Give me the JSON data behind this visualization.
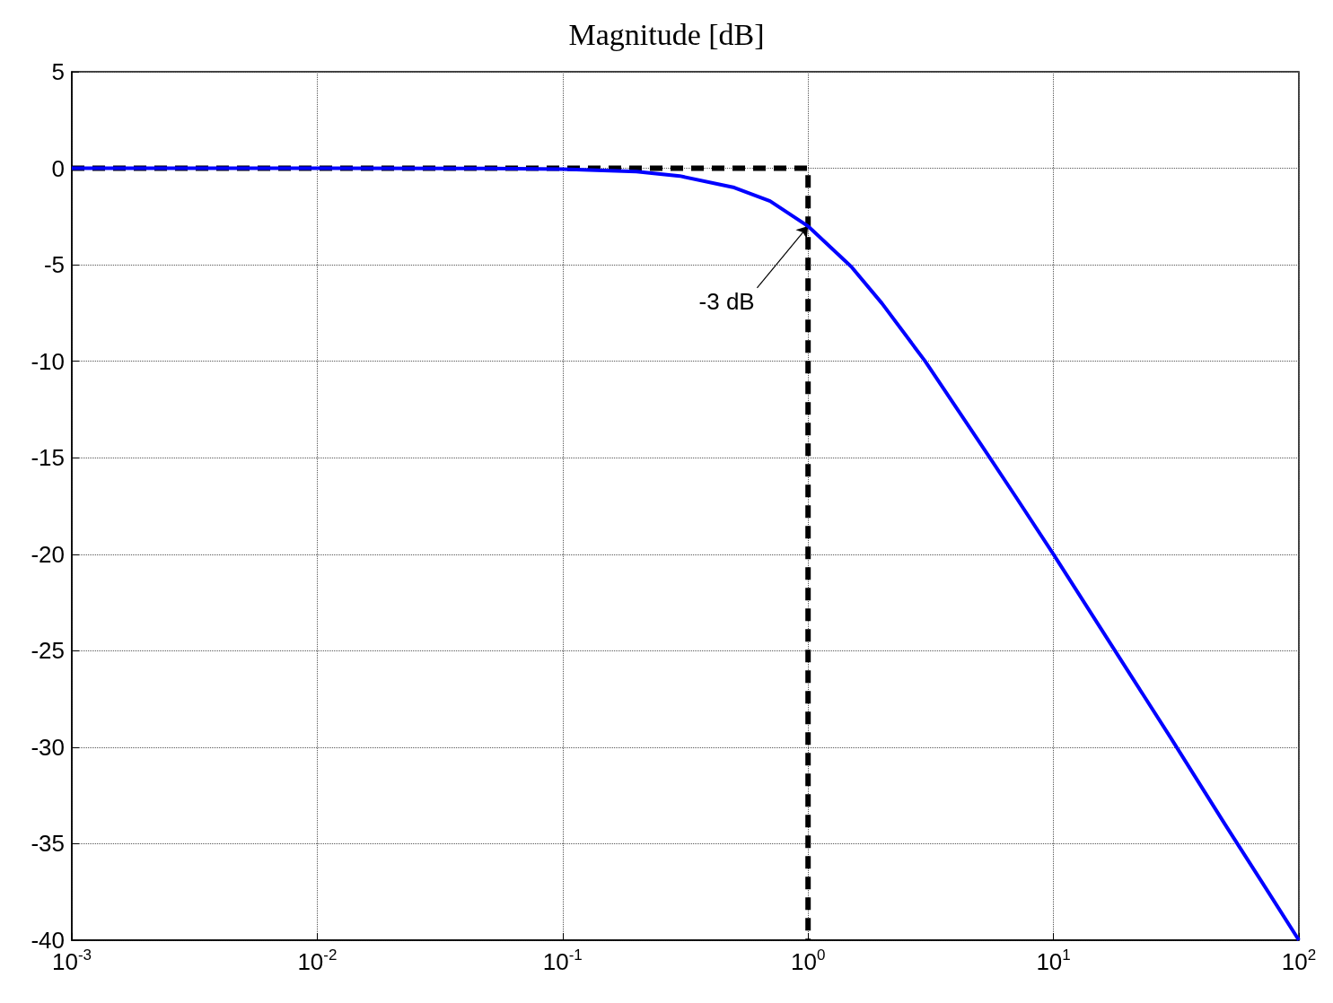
{
  "chart_data": {
    "type": "line",
    "title": "Magnitude [dB]",
    "log": "x",
    "grid": true,
    "marker": "none",
    "xlim": [
      0.001,
      100
    ],
    "ylim": [
      -40,
      5
    ],
    "xticks": [
      {
        "value": 0.001,
        "label": "10$^{-3}$"
      },
      {
        "value": 0.01,
        "label": "10$^{-2}$"
      },
      {
        "value": 0.1,
        "label": "10$^{-1}$"
      },
      {
        "value": 1,
        "label": "10$^{0}$"
      },
      {
        "value": 10,
        "label": "10$^{1}$"
      },
      {
        "value": 100,
        "label": "10$^{2}$"
      }
    ],
    "yticks": [
      -40,
      -35,
      -30,
      -25,
      -20,
      -15,
      -10,
      -5,
      0,
      5
    ],
    "series": [
      {
        "color": "#0000ff",
        "line_style": "solid",
        "x": [
          0.001,
          0.01,
          0.05,
          0.1,
          0.2,
          0.3,
          0.5,
          0.7,
          1,
          1.5,
          2,
          3,
          5,
          7,
          10,
          20,
          30,
          50,
          70,
          100
        ],
        "values": [
          0,
          0,
          -0.01,
          -0.04,
          -0.17,
          -0.4,
          -1,
          -1.7,
          -3,
          -5.1,
          -7,
          -10,
          -14.2,
          -17,
          -20,
          -26,
          -29.5,
          -34,
          -36.9,
          -40
        ]
      },
      {
        "color": "#000000",
        "line_style": "dashed",
        "x": [
          0.001,
          1,
          1
        ],
        "values": [
          0,
          0,
          -40
        ]
      }
    ],
    "annotations": [
      {
        "text": "-3 dB",
        "x": 1,
        "y": -3
      }
    ]
  }
}
